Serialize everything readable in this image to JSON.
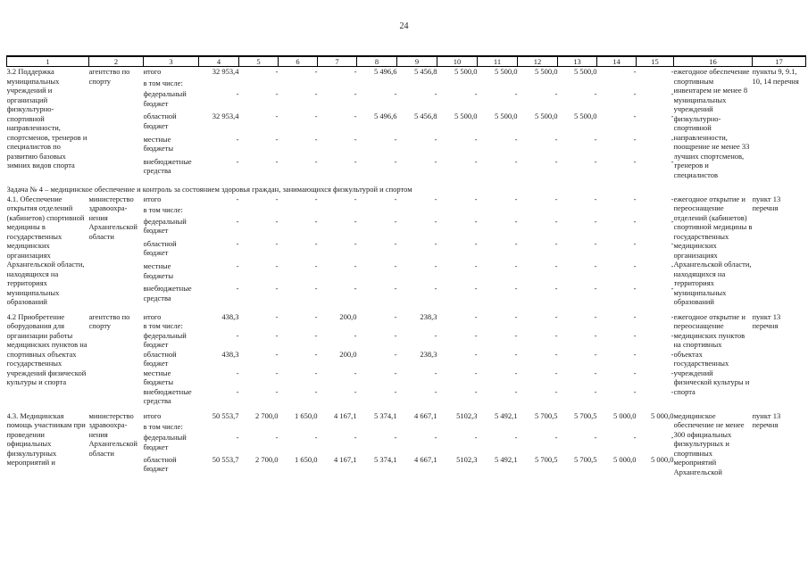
{
  "page": {
    "number": "24"
  },
  "table": {
    "column_numbers": [
      "1",
      "2",
      "3",
      "4",
      "5",
      "6",
      "7",
      "8",
      "9",
      "10",
      "11",
      "12",
      "13",
      "14",
      "15",
      "16",
      "17"
    ],
    "sections": [
      {
        "title": "",
        "rows": [
          {
            "name": "3.2 Поддержка муниципальных учреждений и организаций физкультурно-спортивной направленности, спортсменов, тренеров и специалистов по развитию базовых зимних видов спорта",
            "executor": "агентство по спорту",
            "lines": [
              {
                "label": "итого",
                "values": [
                  "32 953,4",
                  "-",
                  "-",
                  "-",
                  "5 496,6",
                  "5 456,8",
                  "5 500,0",
                  "5 500,0",
                  "5 500,0",
                  "5 500,0",
                  "-",
                  "-"
                ]
              },
              {
                "label": "в том числе:",
                "values": [
                  "",
                  "",
                  "",
                  "",
                  "",
                  "",
                  "",
                  "",
                  "",
                  "",
                  "",
                  ""
                ]
              },
              {
                "label": "федеральный бюджет",
                "values": [
                  "-",
                  "-",
                  "-",
                  "-",
                  "-",
                  "-",
                  "-",
                  "-",
                  "-",
                  "-",
                  "-",
                  "-"
                ]
              },
              {
                "label": "областной бюджет",
                "values": [
                  "32 953,4",
                  "-",
                  "-",
                  "-",
                  "5 496,6",
                  "5 456,8",
                  "5 500,0",
                  "5 500,0",
                  "5 500,0",
                  "5 500,0",
                  "-",
                  "-"
                ]
              },
              {
                "label": "местные бюджеты",
                "values": [
                  "-",
                  "-",
                  "-",
                  "-",
                  "-",
                  "-",
                  "-",
                  "-",
                  "-",
                  "-",
                  "-",
                  "-"
                ]
              },
              {
                "label": "внебюджетные средства",
                "values": [
                  "-",
                  "-",
                  "-",
                  "-",
                  "-",
                  "-",
                  "-",
                  "-",
                  "-",
                  "-",
                  "-",
                  "-"
                ]
              }
            ],
            "result": "ежегодное обеспечение спортивным инвентарем не менее 8 муниципальных учреждений физкультурно-спортивной направленности, поощрение не менее 33 лучших спортсменов, тренеров и специалистов",
            "ref": "пункты 9, 9.1, 10, 14 перечня"
          }
        ]
      },
      {
        "title": "Задача № 4 – медицинское обеспечение и контроль за состоянием здоровья граждан, занимающихся физкультурой и спортом",
        "rows": [
          {
            "name": "4.1. Обеспечение открытия отделений (кабинетов) спортивной медицины в государственных медицинских организациях Архангельской области, находящихся на территориях муниципальных образований",
            "executor": "министерство здравоохра-нения Архангельской области",
            "lines": [
              {
                "label": "итого",
                "values": [
                  "-",
                  "-",
                  "-",
                  "-",
                  "-",
                  "-",
                  "-",
                  "-",
                  "-",
                  "-",
                  "-",
                  "-"
                ]
              },
              {
                "label": "в том числе:",
                "values": [
                  "",
                  "",
                  "",
                  "",
                  "",
                  "",
                  "",
                  "",
                  "",
                  "",
                  "",
                  ""
                ]
              },
              {
                "label": "федеральный бюджет",
                "values": [
                  "-",
                  "-",
                  "-",
                  "-",
                  "-",
                  "-",
                  "-",
                  "-",
                  "-",
                  "-",
                  "-",
                  "-"
                ]
              },
              {
                "label": "областной бюджет",
                "values": [
                  "-",
                  "-",
                  "-",
                  "-",
                  "-",
                  "-",
                  "-",
                  "-",
                  "-",
                  "-",
                  "-",
                  "-"
                ]
              },
              {
                "label": "местные бюджеты",
                "values": [
                  "-",
                  "-",
                  "-",
                  "-",
                  "-",
                  "-",
                  "-",
                  "-",
                  "-",
                  "-",
                  "-",
                  "-"
                ]
              },
              {
                "label": "внебюджетные средства",
                "values": [
                  "-",
                  "-",
                  "-",
                  "-",
                  "-",
                  "-",
                  "-",
                  "-",
                  "-",
                  "-",
                  "-",
                  "-"
                ]
              }
            ],
            "result": "ежегодное открытие и переоснащение отделений (кабинетов) спортивной медицины в государственных медицинских организациях Архангельской области, находящихся на территориях муниципальных образований",
            "ref": "пункт 13 перечня"
          },
          {
            "name": "4.2 Приобретение оборудования для организации работы медицинских пунктов на спортивных объектах государственных учреждений физической культуры и спорта",
            "executor": "агентство по спорту",
            "lines": [
              {
                "label": "итого",
                "values": [
                  "438,3",
                  "-",
                  "-",
                  "200,0",
                  "-",
                  "238,3",
                  "-",
                  "-",
                  "-",
                  "-",
                  "-",
                  "-"
                ]
              },
              {
                "label": "в том числе:",
                "values": [
                  "",
                  "",
                  "",
                  "",
                  "",
                  "",
                  "",
                  "",
                  "",
                  "",
                  "",
                  ""
                ]
              },
              {
                "label": "федеральный бюджет",
                "values": [
                  "-",
                  "-",
                  "-",
                  "-",
                  "-",
                  "-",
                  "-",
                  "-",
                  "-",
                  "-",
                  "-",
                  "-"
                ]
              },
              {
                "label": "областной бюджет",
                "values": [
                  "438,3",
                  "-",
                  "-",
                  "200,0",
                  "-",
                  "238,3",
                  "-",
                  "-",
                  "-",
                  "-",
                  "-",
                  "-"
                ]
              },
              {
                "label": "местные бюджеты",
                "values": [
                  "-",
                  "-",
                  "-",
                  "-",
                  "-",
                  "-",
                  "-",
                  "-",
                  "-",
                  "-",
                  "-",
                  "-"
                ]
              },
              {
                "label": "внебюджетные средства",
                "values": [
                  "-",
                  "-",
                  "-",
                  "-",
                  "-",
                  "-",
                  "-",
                  "-",
                  "-",
                  "-",
                  "-",
                  "-"
                ]
              }
            ],
            "result": "ежегодное открытие и переоснащение медицинских пунктов на спортивных объектах государственных учреждений физической культуры и спорта",
            "ref": "пункт 13 перечня"
          },
          {
            "name": "4.3. Медицинская помощь участникам при проведении официальных физкультурных мероприятий и",
            "executor": "министерство здравоохра-нения Архангельской области",
            "lines": [
              {
                "label": "итого",
                "values": [
                  "50 553,7",
                  "2 700,0",
                  "1 650,0",
                  "4 167,1",
                  "5 374,1",
                  "4 667,1",
                  "5102,3",
                  "5 492,1",
                  "5 700,5",
                  "5 700,5",
                  "5 000,0",
                  "5 000,0"
                ]
              },
              {
                "label": "в том числе:",
                "values": [
                  "",
                  "",
                  "",
                  "",
                  "",
                  "",
                  "",
                  "",
                  "",
                  "",
                  "",
                  ""
                ]
              },
              {
                "label": "федеральный бюджет",
                "values": [
                  "-",
                  "-",
                  "-",
                  "-",
                  "-",
                  "-",
                  "-",
                  "-",
                  "-",
                  "-",
                  "-",
                  "-"
                ]
              },
              {
                "label": "областной бюджет",
                "values": [
                  "50 553,7",
                  "2 700,0",
                  "1 650,0",
                  "4 167,1",
                  "5 374,1",
                  "4 667,1",
                  "5102,3",
                  "5 492,1",
                  "5 700,5",
                  "5 700,5",
                  "5 000,0",
                  "5 000,0"
                ]
              }
            ],
            "result": "медицинское обеспечение не менее 300 официальных физкультурных и спортивных мероприятий Архангельской",
            "ref": "пункт 13 перечня"
          }
        ]
      }
    ]
  }
}
